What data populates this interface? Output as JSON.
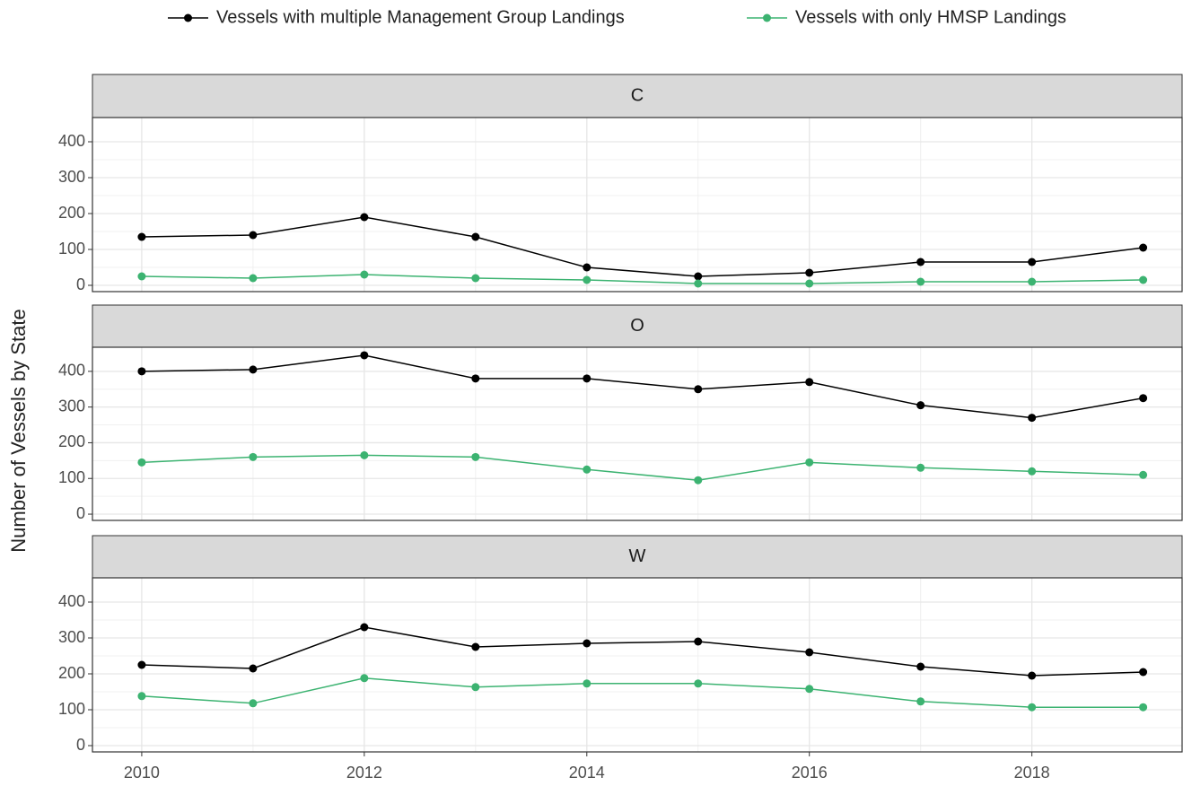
{
  "chart_data": {
    "type": "line",
    "ylabel": "Number of Vessels by State",
    "legend": "top",
    "grid": true,
    "x": [
      2010,
      2011,
      2012,
      2013,
      2014,
      2015,
      2016,
      2017,
      2018,
      2019
    ],
    "xlim": [
      2009.557,
      2019.35
    ],
    "xticks": [
      2010,
      2012,
      2014,
      2016,
      2018
    ],
    "ylim": [
      -17.5,
      467.5
    ],
    "yticks": [
      0,
      100,
      200,
      300,
      400
    ],
    "series": [
      {
        "name": "Vessels with multiple Management Group Landings",
        "color": "#000000"
      },
      {
        "name": "Vessels with only HMSP Landings",
        "color": "#3cb371"
      }
    ],
    "facets": [
      {
        "title": "C",
        "series": [
          {
            "values": [
              135,
              140,
              190,
              135,
              50,
              25,
              35,
              65,
              65,
              105
            ]
          },
          {
            "values": [
              25,
              20,
              30,
              20,
              15,
              5,
              5,
              10,
              10,
              15
            ]
          }
        ]
      },
      {
        "title": "O",
        "series": [
          {
            "values": [
              400,
              405,
              445,
              380,
              380,
              350,
              370,
              305,
              270,
              325
            ]
          },
          {
            "values": [
              145,
              160,
              165,
              160,
              125,
              95,
              145,
              130,
              120,
              110
            ]
          }
        ]
      },
      {
        "title": "W",
        "series": [
          {
            "values": [
              225,
              215,
              330,
              275,
              285,
              290,
              260,
              220,
              195,
              205
            ]
          },
          {
            "values": [
              138,
              118,
              188,
              163,
              173,
              173,
              158,
              123,
              107,
              107
            ]
          }
        ]
      }
    ]
  }
}
